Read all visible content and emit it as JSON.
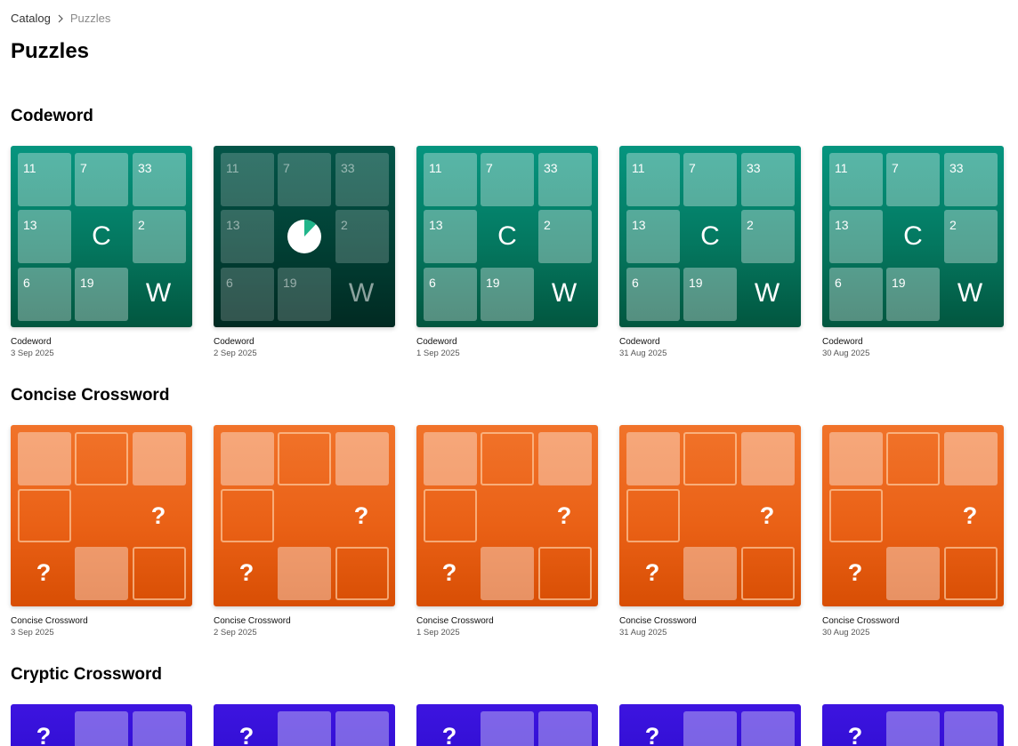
{
  "breadcrumb": {
    "catalog": "Catalog",
    "current": "Puzzles",
    "separator_icon": "chevron-right-icon"
  },
  "page": {
    "title": "Puzzles"
  },
  "sections": {
    "codeword": {
      "title": "Codeword",
      "tile_numbers": [
        "11",
        "7",
        "33",
        "13",
        "2",
        "6",
        "19"
      ],
      "tile_letters": [
        "C",
        "W"
      ],
      "colors": {
        "top": "#05957f",
        "bottom": "#02563f"
      },
      "cards": [
        {
          "name": "Codeword",
          "date": "3 Sep 2025"
        },
        {
          "name": "Codeword",
          "date": "2 Sep 2025",
          "in_progress": true,
          "progress_icon": "progress-pie-icon",
          "progress_fraction": 0.12
        },
        {
          "name": "Codeword",
          "date": "1 Sep 2025"
        },
        {
          "name": "Codeword",
          "date": "31 Aug 2025"
        },
        {
          "name": "Codeword",
          "date": "30 Aug 2025"
        }
      ]
    },
    "concise": {
      "title": "Concise Crossword",
      "tile_mark": "?",
      "colors": {
        "top": "#f1732a",
        "bottom": "#d84e04"
      },
      "cards": [
        {
          "name": "Concise Crossword",
          "date": "3 Sep 2025"
        },
        {
          "name": "Concise Crossword",
          "date": "2 Sep 2025"
        },
        {
          "name": "Concise Crossword",
          "date": "1 Sep 2025"
        },
        {
          "name": "Concise Crossword",
          "date": "31 Aug 2025"
        },
        {
          "name": "Concise Crossword",
          "date": "30 Aug 2025"
        }
      ]
    },
    "cryptic": {
      "title": "Cryptic Crossword",
      "tile_mark": "?",
      "colors": {
        "top": "#3d14e0",
        "bottom": "#3410d6"
      }
    }
  }
}
